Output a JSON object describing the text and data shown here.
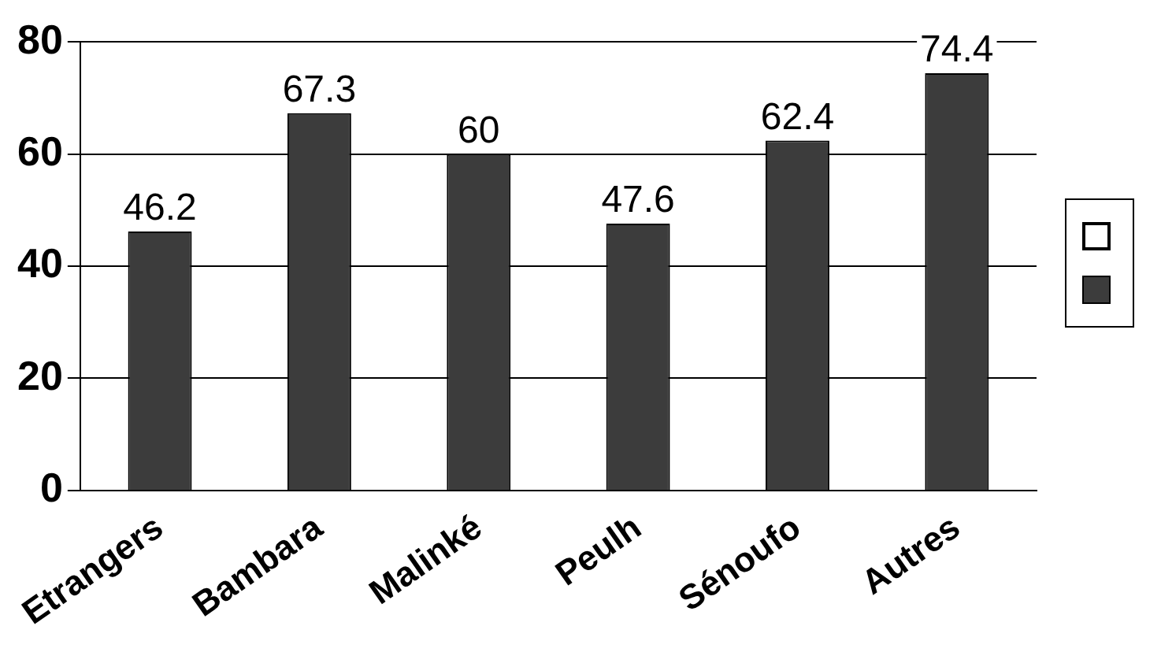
{
  "chart_data": {
    "type": "bar",
    "categories": [
      "Etrangers",
      "Bambara",
      "Malinké",
      "Peulh",
      "Sénoufo",
      "Autres"
    ],
    "series": [
      {
        "color": "#3c3c3c",
        "values": [
          46.2,
          67.3,
          60,
          47.6,
          62.4,
          74.4
        ]
      }
    ],
    "ylim": [
      0,
      80
    ],
    "yticks": [
      0,
      20,
      40,
      60,
      80
    ],
    "grid": "y",
    "data_labels": true
  }
}
